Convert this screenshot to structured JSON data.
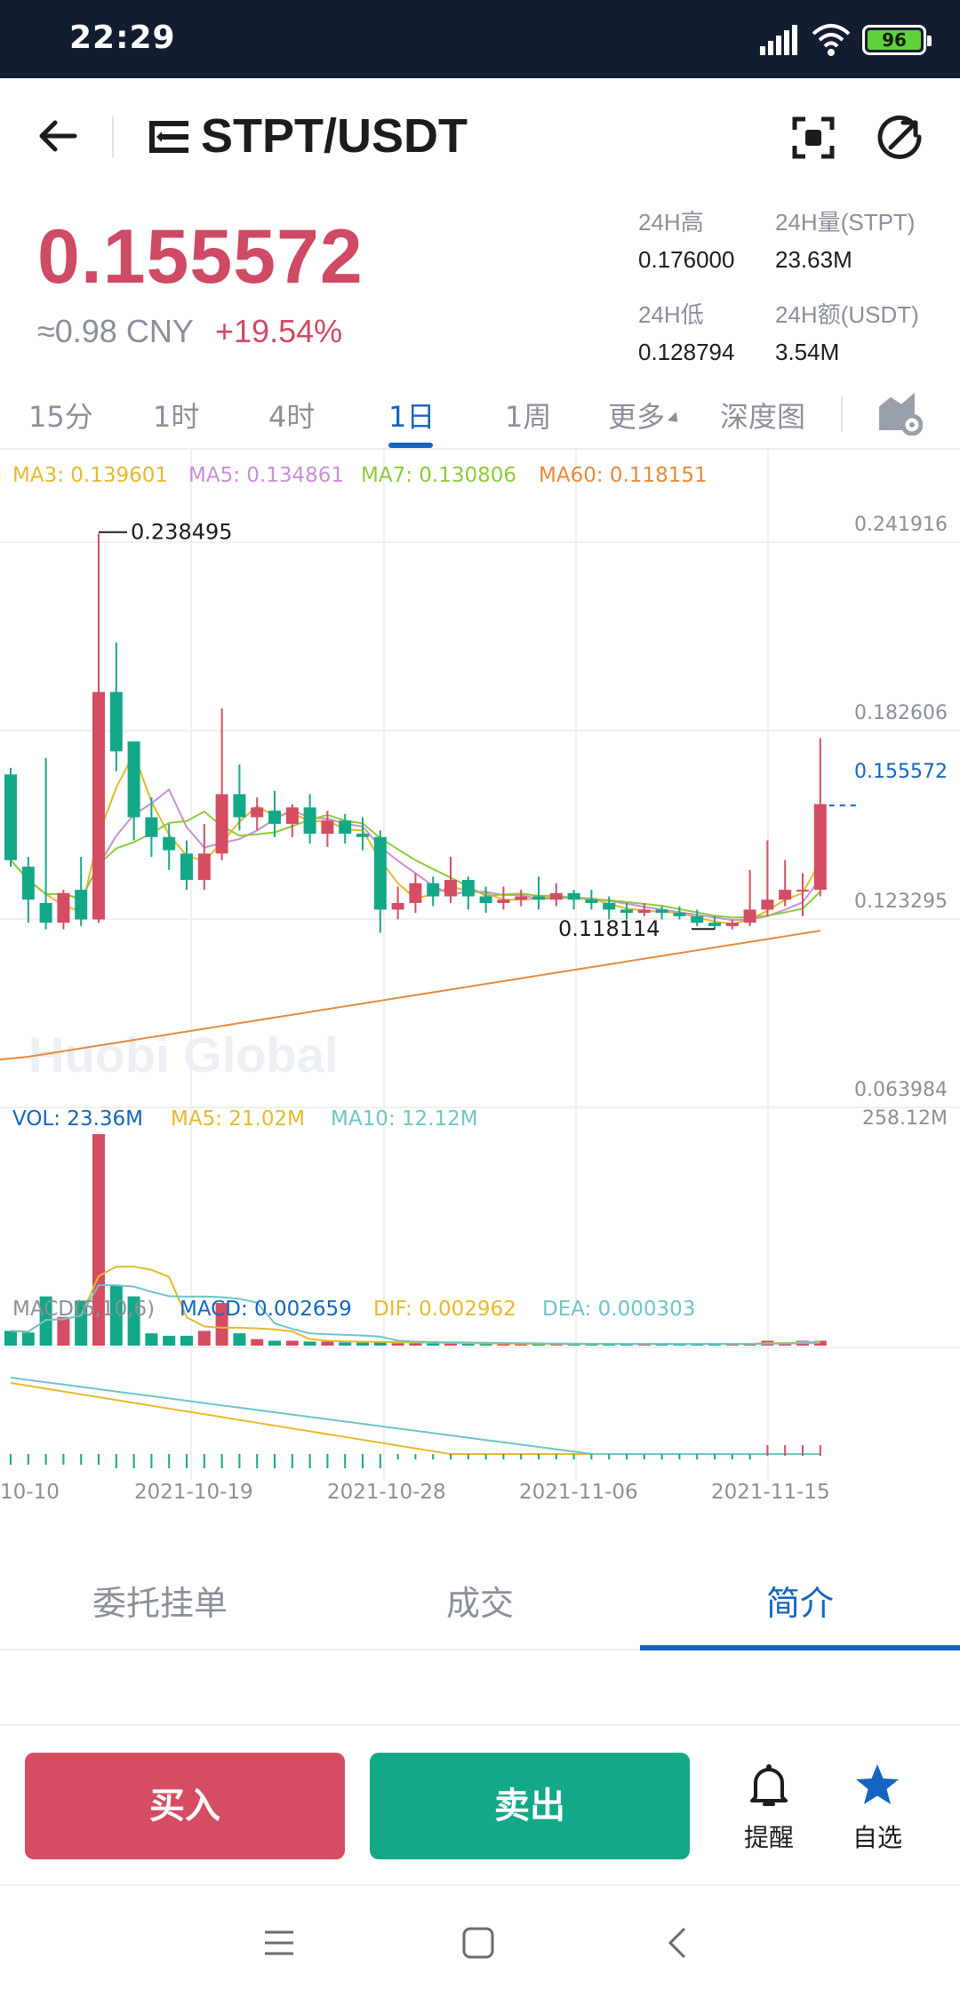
{
  "status_bar": {
    "time": "22:29",
    "battery": "96"
  },
  "header": {
    "pair": "STPT/USDT"
  },
  "price": {
    "last": "0.155572",
    "cny": "≈0.98 CNY",
    "change": "+19.54%"
  },
  "stats": {
    "high_label": "24H高",
    "high_value": "0.176000",
    "vol_label": "24H量(STPT)",
    "vol_value": "23.63M",
    "low_label": "24H低",
    "low_value": "0.128794",
    "amount_label": "24H额(USDT)",
    "amount_value": "3.54M"
  },
  "period_tabs": [
    "15分",
    "1时",
    "4时",
    "1日",
    "1周",
    "更多",
    "深度图"
  ],
  "active_period": "1日",
  "chart_data": {
    "type": "candlestick",
    "ma_legend": {
      "ma3": "MA3: 0.139601",
      "ma5": "MA5: 0.134861",
      "ma7": "MA7: 0.130806",
      "ma60": "MA60: 0.118151"
    },
    "y_axis_labels": [
      "0.241916",
      "0.182606",
      "0.155572",
      "0.123295",
      "0.063984"
    ],
    "max_label": "0.238495",
    "min_label": "0.118114",
    "watermark": "Huobi Global",
    "x_axis_labels": [
      "10-10",
      "2021-10-19",
      "2021-10-28",
      "2021-11-06",
      "2021-11-15"
    ],
    "volume_legend": {
      "vol": "VOL: 23.36M",
      "ma5": "MA5: 21.02M",
      "ma10": "MA10: 12.12M",
      "max": "258.12M"
    },
    "macd_legend": {
      "name": "MACD(6,10,6)",
      "macd": "MACD: 0.002659",
      "dif": "DIF: 0.002962",
      "dea": "DEA: 0.000303"
    },
    "candles": [
      [
        0.165,
        0.139,
        0.167,
        0.137
      ],
      [
        0.137,
        0.127,
        0.14,
        0.12
      ],
      [
        0.126,
        0.12,
        0.17,
        0.118
      ],
      [
        0.12,
        0.129,
        0.13,
        0.118
      ],
      [
        0.13,
        0.121,
        0.14,
        0.119
      ],
      [
        0.121,
        0.19,
        0.238,
        0.12
      ],
      [
        0.19,
        0.172,
        0.205,
        0.166
      ],
      [
        0.175,
        0.152,
        0.17,
        0.145
      ],
      [
        0.152,
        0.146,
        0.158,
        0.14
      ],
      [
        0.146,
        0.142,
        0.15,
        0.136
      ],
      [
        0.141,
        0.133,
        0.145,
        0.13
      ],
      [
        0.133,
        0.141,
        0.15,
        0.13
      ],
      [
        0.141,
        0.159,
        0.185,
        0.139
      ],
      [
        0.159,
        0.152,
        0.168,
        0.148
      ],
      [
        0.152,
        0.155,
        0.158,
        0.148
      ],
      [
        0.154,
        0.15,
        0.16,
        0.146
      ],
      [
        0.15,
        0.155,
        0.156,
        0.146
      ],
      [
        0.155,
        0.147,
        0.159,
        0.144
      ],
      [
        0.147,
        0.151,
        0.154,
        0.143
      ],
      [
        0.151,
        0.147,
        0.153,
        0.144
      ],
      [
        0.147,
        0.146,
        0.152,
        0.142
      ],
      [
        0.146,
        0.124,
        0.148,
        0.117
      ],
      [
        0.124,
        0.126,
        0.131,
        0.121
      ],
      [
        0.126,
        0.132,
        0.135,
        0.123
      ],
      [
        0.132,
        0.128,
        0.134,
        0.125
      ],
      [
        0.128,
        0.133,
        0.14,
        0.126
      ],
      [
        0.133,
        0.128,
        0.134,
        0.124
      ],
      [
        0.128,
        0.126,
        0.131,
        0.123
      ],
      [
        0.126,
        0.127,
        0.131,
        0.124
      ],
      [
        0.127,
        0.128,
        0.13,
        0.125
      ],
      [
        0.128,
        0.127,
        0.134,
        0.124
      ],
      [
        0.127,
        0.129,
        0.132,
        0.125
      ],
      [
        0.129,
        0.127,
        0.13,
        0.124
      ],
      [
        0.127,
        0.126,
        0.13,
        0.124
      ],
      [
        0.126,
        0.124,
        0.128,
        0.121
      ],
      [
        0.124,
        0.123,
        0.126,
        0.121
      ],
      [
        0.123,
        0.124,
        0.126,
        0.122
      ],
      [
        0.124,
        0.123,
        0.125,
        0.121
      ],
      [
        0.123,
        0.122,
        0.125,
        0.121
      ],
      [
        0.122,
        0.12,
        0.124,
        0.119
      ],
      [
        0.12,
        0.119,
        0.122,
        0.118
      ],
      [
        0.119,
        0.12,
        0.121,
        0.118
      ],
      [
        0.12,
        0.124,
        0.136,
        0.119
      ],
      [
        0.124,
        0.127,
        0.145,
        0.122
      ],
      [
        0.127,
        0.13,
        0.139,
        0.125
      ],
      [
        0.13,
        0.13,
        0.135,
        0.122
      ],
      [
        0.13,
        0.156,
        0.176,
        0.128
      ]
    ]
  },
  "info_tabs": [
    "委托挂单",
    "成交",
    "简介"
  ],
  "active_info_tab": "简介",
  "actions": {
    "buy": "买入",
    "sell": "卖出",
    "alert": "提醒",
    "favorite": "自选"
  },
  "colors": {
    "up": "#d44d63",
    "down": "#13a888",
    "accent": "#1565c0",
    "ma3": "#e5b92c",
    "ma5": "#c78fd6",
    "ma7": "#8dca3a",
    "ma60": "#e58a3b",
    "vol_ma5": "#e5b92c",
    "vol_ma10": "#6dc5c8"
  }
}
